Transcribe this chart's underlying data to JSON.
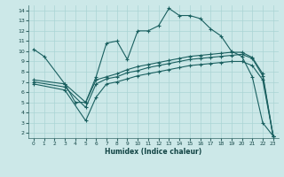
{
  "xlabel": "Humidex (Indice chaleur)",
  "bg_color": "#cce8e8",
  "grid_color": "#aad4d4",
  "line_color": "#1a6060",
  "xlim": [
    -0.5,
    23.5
  ],
  "ylim": [
    1.5,
    14.5
  ],
  "xticks": [
    0,
    1,
    2,
    3,
    4,
    5,
    6,
    7,
    8,
    9,
    10,
    11,
    12,
    13,
    14,
    15,
    16,
    17,
    18,
    19,
    20,
    21,
    22,
    23
  ],
  "yticks": [
    2,
    3,
    4,
    5,
    6,
    7,
    8,
    9,
    10,
    11,
    12,
    13,
    14
  ],
  "line1_x": [
    0,
    1,
    3,
    5,
    6,
    7,
    8,
    9,
    10,
    11,
    12,
    13,
    14,
    15,
    16,
    17,
    18,
    19,
    20,
    21,
    22,
    23
  ],
  "line1_y": [
    10.2,
    9.5,
    6.8,
    5.0,
    7.5,
    10.8,
    11.0,
    9.2,
    12.0,
    12.0,
    12.5,
    14.2,
    13.5,
    13.5,
    13.2,
    12.2,
    11.5,
    10.0,
    9.5,
    7.5,
    3.0,
    1.7
  ],
  "line2_x": [
    0,
    3,
    4,
    5,
    6,
    7,
    8,
    9,
    10,
    11,
    12,
    13,
    14,
    15,
    16,
    17,
    18,
    19,
    20,
    21,
    22,
    23
  ],
  "line2_y": [
    7.2,
    6.8,
    5.0,
    5.0,
    7.2,
    7.5,
    7.8,
    8.2,
    8.5,
    8.7,
    8.9,
    9.1,
    9.3,
    9.5,
    9.6,
    9.7,
    9.8,
    9.9,
    9.9,
    9.4,
    7.8,
    1.7
  ],
  "line3_x": [
    0,
    3,
    5,
    6,
    7,
    8,
    9,
    10,
    11,
    12,
    13,
    14,
    15,
    16,
    17,
    18,
    19,
    20,
    21,
    22,
    23
  ],
  "line3_y": [
    7.0,
    6.5,
    4.5,
    6.8,
    7.3,
    7.5,
    7.9,
    8.1,
    8.4,
    8.6,
    8.8,
    9.0,
    9.2,
    9.3,
    9.4,
    9.5,
    9.6,
    9.7,
    9.3,
    7.6,
    1.7
  ],
  "line4_x": [
    0,
    3,
    5,
    6,
    7,
    8,
    9,
    10,
    11,
    12,
    13,
    14,
    15,
    16,
    17,
    18,
    19,
    20,
    21,
    22,
    23
  ],
  "line4_y": [
    6.8,
    6.2,
    3.2,
    5.5,
    6.8,
    7.0,
    7.3,
    7.6,
    7.8,
    8.0,
    8.2,
    8.4,
    8.6,
    8.7,
    8.8,
    8.9,
    9.0,
    9.0,
    8.6,
    7.2,
    1.7
  ]
}
